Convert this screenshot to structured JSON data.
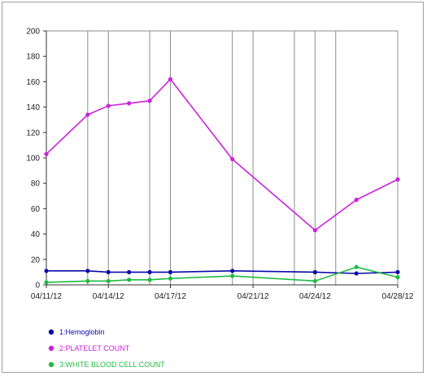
{
  "chart_data": {
    "type": "line",
    "title": "",
    "xlabel": "",
    "ylabel": "",
    "ylim": [
      0,
      200
    ],
    "y_ticks": [
      0,
      20,
      40,
      60,
      80,
      100,
      120,
      140,
      160,
      180,
      200
    ],
    "x_range": [
      "2012-04-11",
      "2012-04-28"
    ],
    "x_tick_labels": [
      {
        "date": "2012-04-11",
        "label": "04/11/12"
      },
      {
        "date": "2012-04-14",
        "label": "04/14/12"
      },
      {
        "date": "2012-04-17",
        "label": "04/17/12"
      },
      {
        "date": "2012-04-21",
        "label": "04/21/12"
      },
      {
        "date": "2012-04-24",
        "label": "04/24/12"
      },
      {
        "date": "2012-04-28",
        "label": "04/28/12"
      }
    ],
    "grid_dates": [
      "2012-04-13",
      "2012-04-14",
      "2012-04-16",
      "2012-04-17",
      "2012-04-20",
      "2012-04-21",
      "2012-04-23",
      "2012-04-24",
      "2012-04-25"
    ],
    "grid": {
      "vertical": true,
      "horizontal": false
    },
    "legend_position": "bottom-left",
    "series": [
      {
        "name": "1:Hemoglobin",
        "color": "#0a0aa8",
        "points": [
          {
            "x": "2012-04-11",
            "y": 11
          },
          {
            "x": "2012-04-13",
            "y": 11
          },
          {
            "x": "2012-04-14",
            "y": 10
          },
          {
            "x": "2012-04-15",
            "y": 10
          },
          {
            "x": "2012-04-16",
            "y": 10
          },
          {
            "x": "2012-04-17",
            "y": 10
          },
          {
            "x": "2012-04-20",
            "y": 11
          },
          {
            "x": "2012-04-24",
            "y": 10
          },
          {
            "x": "2012-04-26",
            "y": 9
          },
          {
            "x": "2012-04-28",
            "y": 10
          }
        ]
      },
      {
        "name": "2:PLATELET COUNT",
        "color": "#cc22dd",
        "points": [
          {
            "x": "2012-04-11",
            "y": 103
          },
          {
            "x": "2012-04-13",
            "y": 134
          },
          {
            "x": "2012-04-14",
            "y": 141
          },
          {
            "x": "2012-04-15",
            "y": 143
          },
          {
            "x": "2012-04-16",
            "y": 145
          },
          {
            "x": "2012-04-17",
            "y": 162
          },
          {
            "x": "2012-04-20",
            "y": 99
          },
          {
            "x": "2012-04-24",
            "y": 43
          },
          {
            "x": "2012-04-26",
            "y": 67
          },
          {
            "x": "2012-04-28",
            "y": 83
          }
        ]
      },
      {
        "name": "3:WHITE BLOOD CELL COUNT",
        "color": "#22bb44",
        "points": [
          {
            "x": "2012-04-11",
            "y": 2
          },
          {
            "x": "2012-04-13",
            "y": 3
          },
          {
            "x": "2012-04-14",
            "y": 3
          },
          {
            "x": "2012-04-15",
            "y": 4
          },
          {
            "x": "2012-04-16",
            "y": 4
          },
          {
            "x": "2012-04-17",
            "y": 5
          },
          {
            "x": "2012-04-20",
            "y": 7
          },
          {
            "x": "2012-04-24",
            "y": 3
          },
          {
            "x": "2012-04-26",
            "y": 14
          },
          {
            "x": "2012-04-28",
            "y": 6
          }
        ]
      }
    ]
  }
}
